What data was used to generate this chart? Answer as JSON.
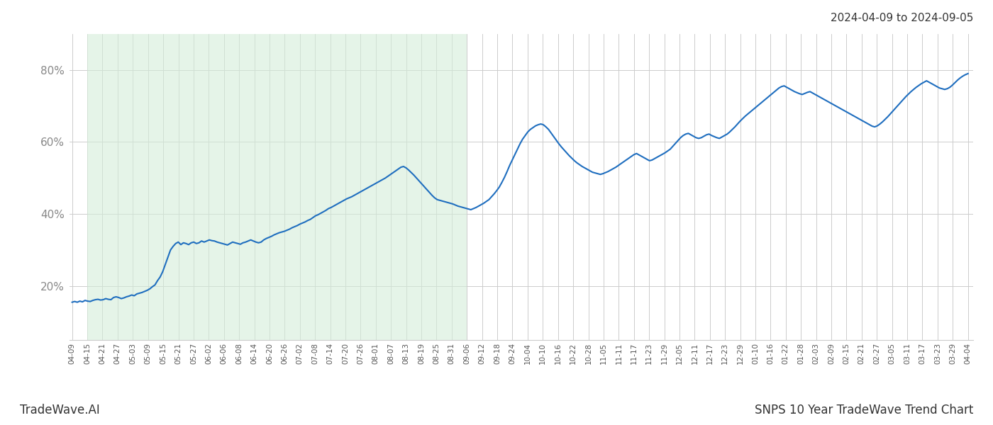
{
  "title_top_right": "2024-04-09 to 2024-09-05",
  "footer_left": "TradeWave.AI",
  "footer_right": "SNPS 10 Year TradeWave Trend Chart",
  "line_color": "#1f6ebf",
  "line_width": 1.5,
  "shade_color": "#d4edda",
  "shade_alpha": 0.6,
  "background_color": "#ffffff",
  "grid_color": "#cccccc",
  "ytick_labels": [
    "20%",
    "40%",
    "60%",
    "80%"
  ],
  "ytick_values": [
    0.2,
    0.4,
    0.6,
    0.8
  ],
  "ylim": [
    0.05,
    0.9
  ],
  "xtick_labels": [
    "04-09",
    "04-15",
    "04-21",
    "04-27",
    "05-03",
    "05-09",
    "05-15",
    "05-21",
    "05-27",
    "06-02",
    "06-06",
    "06-08",
    "06-14",
    "06-20",
    "06-26",
    "07-02",
    "07-08",
    "07-14",
    "07-20",
    "07-26",
    "08-01",
    "08-07",
    "08-13",
    "08-19",
    "08-25",
    "08-31",
    "09-06",
    "09-12",
    "09-18",
    "09-24",
    "10-04",
    "10-10",
    "10-16",
    "10-22",
    "10-28",
    "11-05",
    "11-11",
    "11-17",
    "11-23",
    "11-29",
    "12-05",
    "12-11",
    "12-17",
    "12-23",
    "12-29",
    "01-10",
    "01-16",
    "01-22",
    "01-28",
    "02-03",
    "02-09",
    "02-15",
    "02-21",
    "02-27",
    "03-05",
    "03-11",
    "03-17",
    "03-23",
    "03-29",
    "04-04"
  ],
  "shade_start_date": "04-15",
  "shade_end_date": "09-06",
  "data": [
    0.155,
    0.157,
    0.155,
    0.158,
    0.156,
    0.16,
    0.158,
    0.157,
    0.16,
    0.162,
    0.163,
    0.161,
    0.162,
    0.165,
    0.163,
    0.162,
    0.168,
    0.17,
    0.168,
    0.165,
    0.167,
    0.17,
    0.172,
    0.175,
    0.173,
    0.178,
    0.18,
    0.182,
    0.185,
    0.188,
    0.192,
    0.198,
    0.203,
    0.215,
    0.225,
    0.24,
    0.26,
    0.28,
    0.3,
    0.31,
    0.318,
    0.322,
    0.315,
    0.32,
    0.318,
    0.315,
    0.32,
    0.322,
    0.318,
    0.32,
    0.325,
    0.322,
    0.325,
    0.328,
    0.326,
    0.325,
    0.322,
    0.32,
    0.318,
    0.316,
    0.314,
    0.318,
    0.322,
    0.32,
    0.318,
    0.316,
    0.32,
    0.322,
    0.325,
    0.328,
    0.325,
    0.322,
    0.32,
    0.322,
    0.328,
    0.332,
    0.335,
    0.338,
    0.342,
    0.345,
    0.348,
    0.35,
    0.352,
    0.355,
    0.358,
    0.362,
    0.365,
    0.368,
    0.372,
    0.375,
    0.378,
    0.382,
    0.385,
    0.39,
    0.395,
    0.398,
    0.402,
    0.406,
    0.41,
    0.415,
    0.418,
    0.422,
    0.426,
    0.43,
    0.434,
    0.438,
    0.442,
    0.445,
    0.448,
    0.452,
    0.456,
    0.46,
    0.464,
    0.468,
    0.472,
    0.476,
    0.48,
    0.484,
    0.488,
    0.492,
    0.496,
    0.5,
    0.505,
    0.51,
    0.515,
    0.52,
    0.525,
    0.53,
    0.532,
    0.528,
    0.522,
    0.515,
    0.508,
    0.5,
    0.492,
    0.484,
    0.476,
    0.468,
    0.46,
    0.452,
    0.445,
    0.44,
    0.438,
    0.436,
    0.434,
    0.432,
    0.43,
    0.428,
    0.425,
    0.422,
    0.42,
    0.418,
    0.416,
    0.414,
    0.412,
    0.415,
    0.418,
    0.422,
    0.426,
    0.43,
    0.435,
    0.44,
    0.448,
    0.456,
    0.465,
    0.475,
    0.488,
    0.502,
    0.518,
    0.535,
    0.55,
    0.565,
    0.58,
    0.595,
    0.608,
    0.618,
    0.628,
    0.635,
    0.64,
    0.645,
    0.648,
    0.65,
    0.648,
    0.642,
    0.635,
    0.625,
    0.615,
    0.605,
    0.595,
    0.586,
    0.578,
    0.57,
    0.562,
    0.555,
    0.548,
    0.542,
    0.537,
    0.532,
    0.528,
    0.524,
    0.52,
    0.516,
    0.514,
    0.512,
    0.51,
    0.512,
    0.515,
    0.518,
    0.522,
    0.526,
    0.53,
    0.535,
    0.54,
    0.545,
    0.55,
    0.555,
    0.56,
    0.565,
    0.568,
    0.564,
    0.56,
    0.556,
    0.552,
    0.548,
    0.55,
    0.554,
    0.558,
    0.562,
    0.566,
    0.57,
    0.575,
    0.58,
    0.588,
    0.596,
    0.604,
    0.612,
    0.618,
    0.622,
    0.624,
    0.62,
    0.616,
    0.612,
    0.61,
    0.612,
    0.616,
    0.62,
    0.622,
    0.618,
    0.615,
    0.612,
    0.61,
    0.614,
    0.618,
    0.622,
    0.628,
    0.635,
    0.642,
    0.65,
    0.658,
    0.665,
    0.672,
    0.678,
    0.684,
    0.69,
    0.696,
    0.702,
    0.708,
    0.714,
    0.72,
    0.726,
    0.732,
    0.738,
    0.744,
    0.75,
    0.754,
    0.756,
    0.752,
    0.748,
    0.744,
    0.74,
    0.737,
    0.734,
    0.732,
    0.735,
    0.738,
    0.74,
    0.736,
    0.732,
    0.728,
    0.724,
    0.72,
    0.716,
    0.712,
    0.708,
    0.704,
    0.7,
    0.696,
    0.692,
    0.688,
    0.684,
    0.68,
    0.676,
    0.672,
    0.668,
    0.664,
    0.66,
    0.656,
    0.652,
    0.648,
    0.644,
    0.642,
    0.645,
    0.65,
    0.656,
    0.663,
    0.67,
    0.678,
    0.686,
    0.694,
    0.702,
    0.71,
    0.718,
    0.726,
    0.733,
    0.74,
    0.746,
    0.752,
    0.757,
    0.762,
    0.766,
    0.77,
    0.766,
    0.762,
    0.758,
    0.754,
    0.75,
    0.748,
    0.746,
    0.748,
    0.752,
    0.758,
    0.765,
    0.772,
    0.778,
    0.783,
    0.787,
    0.79
  ]
}
